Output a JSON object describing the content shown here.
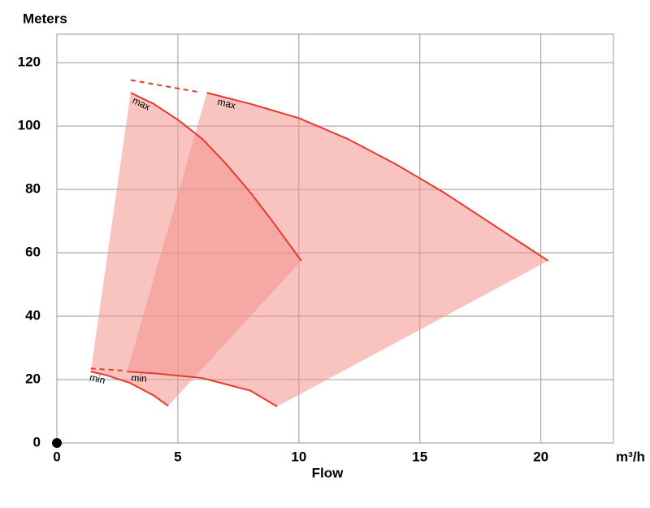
{
  "chart_data": {
    "type": "pump-curve",
    "y_label": "Meters",
    "x_label": "Flow",
    "x_unit": "m³/h",
    "xlim": [
      0,
      23
    ],
    "ylim": [
      0,
      129
    ],
    "xticks": [
      0,
      5,
      10,
      15,
      20
    ],
    "yticks": [
      0,
      20,
      40,
      60,
      80,
      100,
      120
    ],
    "grid": true,
    "line_color": "#e8392e",
    "fill_color": "#f4948c",
    "pumps": [
      {
        "max": {
          "label": "max",
          "x": [
            3.05,
            4,
            5,
            6,
            7,
            8,
            9,
            10.1
          ],
          "values": [
            110.5,
            107,
            102,
            96,
            88,
            79,
            69,
            57.5
          ]
        },
        "min": {
          "label": "min",
          "x": [
            1.4,
            2,
            3,
            4,
            4.6
          ],
          "values": [
            22.5,
            21.5,
            19,
            15,
            11.7
          ]
        }
      },
      {
        "max": {
          "label": "max",
          "x": [
            6.2,
            8,
            10,
            12,
            14,
            16,
            18,
            20.3
          ],
          "values": [
            110.5,
            107,
            102.5,
            96,
            88,
            79,
            69,
            57.5
          ]
        },
        "min": {
          "label": "min",
          "x": [
            2.9,
            4,
            6,
            8,
            9.1
          ],
          "values": [
            22.5,
            22,
            20.5,
            16.5,
            11.5
          ]
        }
      }
    ],
    "links": [
      {
        "x": [
          3.05,
          5.8
        ],
        "values": [
          114.5,
          110.8
        ]
      },
      {
        "x": [
          1.4,
          2.8
        ],
        "values": [
          23.5,
          22.8
        ]
      }
    ]
  }
}
